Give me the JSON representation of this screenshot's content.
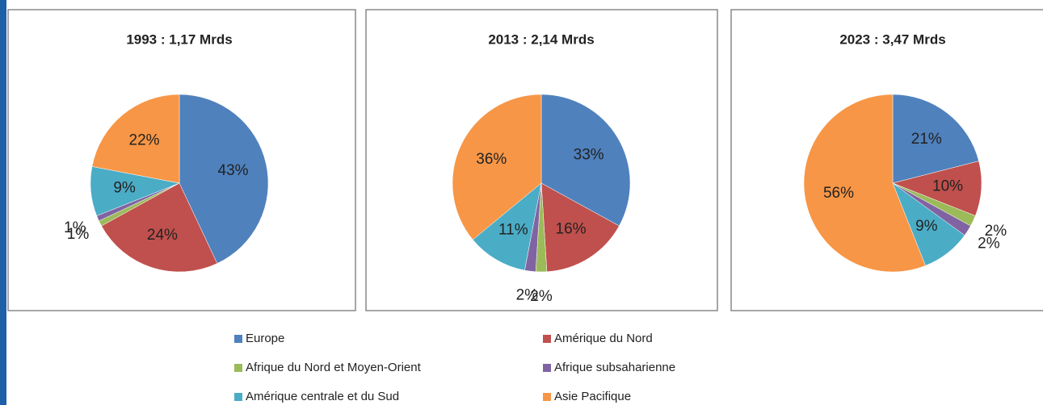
{
  "chart_data": [
    {
      "type": "pie",
      "title": "1993 : 1,17 Mrds",
      "categories": [
        "Europe",
        "Amérique du Nord",
        "Afrique du Nord et Moyen-Orient",
        "Afrique subsaharienne",
        "Amérique centrale et du Sud",
        "Asie Pacifique"
      ],
      "values": [
        43,
        24,
        1,
        1,
        9,
        22
      ],
      "value_labels": [
        "43%",
        "24%",
        "1%",
        "1%",
        "9%",
        "22%"
      ],
      "colors": [
        "#4f81bd",
        "#c0504d",
        "#9bbb59",
        "#8064a2",
        "#4bacc6",
        "#f79646"
      ]
    },
    {
      "type": "pie",
      "title": "2013 : 2,14 Mrds",
      "categories": [
        "Europe",
        "Amérique du Nord",
        "Afrique du Nord et Moyen-Orient",
        "Afrique subsaharienne",
        "Amérique centrale et du Sud",
        "Asie Pacifique"
      ],
      "values": [
        33,
        16,
        2,
        2,
        11,
        36
      ],
      "value_labels": [
        "33%",
        "16%",
        "2%",
        "2%",
        "11%",
        "36%"
      ],
      "colors": [
        "#4f81bd",
        "#c0504d",
        "#9bbb59",
        "#8064a2",
        "#4bacc6",
        "#f79646"
      ]
    },
    {
      "type": "pie",
      "title": "2023 : 3,47 Mrds",
      "categories": [
        "Europe",
        "Amérique du Nord",
        "Afrique du Nord et Moyen-Orient",
        "Afrique subsaharienne",
        "Amérique centrale et du Sud",
        "Asie Pacifique"
      ],
      "values": [
        21,
        10,
        2,
        2,
        9,
        56
      ],
      "value_labels": [
        "21%",
        "10%",
        "2%",
        "2%",
        "9%",
        "56%"
      ],
      "colors": [
        "#4f81bd",
        "#c0504d",
        "#9bbb59",
        "#8064a2",
        "#4bacc6",
        "#f79646"
      ]
    }
  ]
}
